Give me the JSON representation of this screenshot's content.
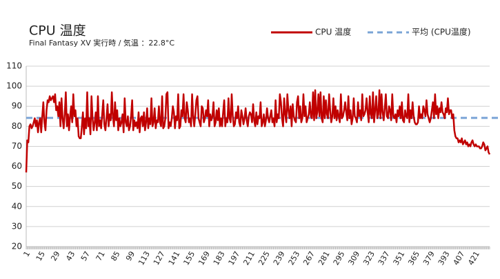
{
  "chart_data": {
    "type": "line",
    "title": "CPU 温度",
    "subtitle": "Final Fantasy XV 実行時 / 気温 ：22.8°C",
    "categories": [
      "1",
      null,
      null,
      null,
      null,
      null,
      null,
      null,
      null,
      null,
      null,
      null,
      null,
      null,
      "15",
      null,
      null,
      null,
      null,
      null,
      null,
      null,
      null,
      null,
      null,
      null,
      null,
      null,
      "29",
      null,
      null,
      null,
      null,
      null,
      null,
      null,
      null,
      null,
      null,
      null,
      null,
      null,
      "43",
      null,
      null,
      null,
      null,
      null,
      null,
      null,
      null,
      null,
      null,
      null,
      null,
      null,
      "57",
      null,
      null,
      null,
      null,
      null,
      null,
      null,
      null,
      null,
      null,
      null,
      null,
      null,
      "71",
      null,
      null,
      null,
      null,
      null,
      null,
      null,
      null,
      null,
      null,
      null,
      null,
      null,
      "85",
      null,
      null,
      null,
      null,
      null,
      null,
      null,
      null,
      null,
      null,
      null,
      null,
      null,
      "99",
      null,
      null,
      null,
      null,
      null,
      null,
      null,
      null,
      null,
      null,
      null,
      null,
      null,
      "113",
      null,
      null,
      null,
      null,
      null,
      null,
      null,
      null,
      null,
      null,
      null,
      null,
      null,
      "127",
      null,
      null,
      null,
      null,
      null,
      null,
      null,
      null,
      null,
      null,
      null,
      null,
      null,
      "141",
      null,
      null,
      null,
      null,
      null,
      null,
      null,
      null,
      null,
      null,
      null,
      null,
      null,
      "155",
      null,
      null,
      null,
      null,
      null,
      null,
      null,
      null,
      null,
      null,
      null,
      null,
      null,
      "169",
      null,
      null,
      null,
      null,
      null,
      null,
      null,
      null,
      null,
      null,
      null,
      null,
      null,
      "183",
      null,
      null,
      null,
      null,
      null,
      null,
      null,
      null,
      null,
      null,
      null,
      null,
      null,
      "197",
      null,
      null,
      null,
      null,
      null,
      null,
      null,
      null,
      null,
      null,
      null,
      null,
      null,
      "211",
      null,
      null,
      null,
      null,
      null,
      null,
      null,
      null,
      null,
      null,
      null,
      null,
      null,
      "225",
      null,
      null,
      null,
      null,
      null,
      null,
      null,
      null,
      null,
      null,
      null,
      null,
      null,
      "239",
      null,
      null,
      null,
      null,
      null,
      null,
      null,
      null,
      null,
      null,
      null,
      null,
      null,
      "253",
      null,
      null,
      null,
      null,
      null,
      null,
      null,
      null,
      null,
      null,
      null,
      null,
      null,
      "267",
      null,
      null,
      null,
      null,
      null,
      null,
      null,
      null,
      null,
      null,
      null,
      null,
      null,
      "281",
      null,
      null,
      null,
      null,
      null,
      null,
      null,
      null,
      null,
      null,
      null,
      null,
      null,
      "295",
      null,
      null,
      null,
      null,
      null,
      null,
      null,
      null,
      null,
      null,
      null,
      null,
      null,
      "309",
      null,
      null,
      null,
      null,
      null,
      null,
      null,
      null,
      null,
      null,
      null,
      null,
      null,
      "323",
      null,
      null,
      null,
      null,
      null,
      null,
      null,
      null,
      null,
      null,
      null,
      null,
      null,
      "337",
      null,
      null,
      null,
      null,
      null,
      null,
      null,
      null,
      null,
      null,
      null,
      null,
      null,
      "351",
      null,
      null,
      null,
      null,
      null,
      null,
      null,
      null,
      null,
      null,
      null,
      null,
      null,
      "365",
      null,
      null,
      null,
      null,
      null,
      null,
      null,
      null,
      null,
      null,
      null,
      null,
      null,
      "379",
      null,
      null,
      null,
      null,
      null,
      null,
      null,
      null,
      null,
      null,
      null,
      null,
      null,
      "393",
      null,
      null,
      null,
      null,
      null,
      null,
      null,
      null,
      null,
      null,
      null,
      null,
      null,
      "407",
      null,
      null,
      null,
      null,
      null,
      null,
      null,
      null,
      null,
      null,
      null,
      null,
      null,
      "421",
      null,
      null,
      null,
      null,
      null,
      null,
      null,
      null,
      null,
      null,
      null,
      null,
      null
    ],
    "series": [
      {
        "name": "CPU 温度",
        "color": "#c00000",
        "values": [
          57,
          73,
          72,
          80,
          81,
          79,
          80,
          82,
          84,
          80,
          83,
          77,
          82,
          84,
          77,
          85,
          92,
          82,
          78,
          88,
          93,
          92,
          95,
          93,
          94,
          95,
          92,
          96,
          88,
          90,
          85,
          92,
          80,
          94,
          84,
          79,
          86,
          97,
          80,
          86,
          78,
          85,
          90,
          82,
          96,
          85,
          88,
          80,
          84,
          75,
          74,
          74,
          80,
          87,
          76,
          84,
          79,
          97,
          80,
          84,
          76,
          95,
          84,
          78,
          82,
          87,
          78,
          95,
          80,
          83,
          79,
          86,
          93,
          81,
          78,
          84,
          91,
          80,
          86,
          83,
          97,
          85,
          80,
          92,
          83,
          88,
          78,
          84,
          80,
          82,
          86,
          77,
          94,
          82,
          80,
          85,
          78,
          80,
          85,
          93,
          78,
          83,
          80,
          82,
          79,
          87,
          77,
          84,
          85,
          80,
          87,
          78,
          82,
          89,
          79,
          84,
          81,
          94,
          80,
          82,
          89,
          79,
          83,
          82,
          90,
          82,
          80,
          95,
          79,
          80,
          84,
          96,
          97,
          79,
          82,
          80,
          84,
          90,
          87,
          79,
          85,
          83,
          96,
          79,
          80,
          88,
          85,
          96,
          84,
          82,
          92,
          88,
          82,
          84,
          80,
          96,
          85,
          80,
          86,
          93,
          95,
          84,
          82,
          80,
          90,
          89,
          82,
          84,
          88,
          85,
          93,
          80,
          86,
          83,
          85,
          92,
          80,
          82,
          88,
          83,
          89,
          80,
          84,
          80,
          87,
          93,
          80,
          84,
          82,
          94,
          84,
          82,
          96,
          85,
          80,
          81,
          87,
          84,
          90,
          82,
          80,
          88,
          85,
          81,
          84,
          89,
          83,
          80,
          85,
          87,
          86,
          82,
          91,
          83,
          80,
          87,
          81,
          85,
          84,
          92,
          80,
          82,
          86,
          80,
          83,
          89,
          84,
          82,
          85,
          88,
          82,
          84,
          80,
          93,
          82,
          86,
          84,
          96,
          92,
          84,
          80,
          94,
          86,
          82,
          96,
          88,
          84,
          90,
          80,
          91,
          85,
          83,
          82,
          92,
          95,
          84,
          90,
          82,
          84,
          96,
          85,
          90,
          82,
          84,
          86,
          92,
          85,
          84,
          97,
          83,
          98,
          84,
          87,
          96,
          85,
          97,
          84,
          82,
          95,
          84,
          93,
          86,
          84,
          96,
          88,
          82,
          85,
          94,
          84,
          90,
          83,
          88,
          85,
          82,
          96,
          84,
          85,
          88,
          92,
          87,
          83,
          95,
          84,
          88,
          81,
          84,
          94,
          85,
          84,
          82,
          92,
          85,
          88,
          83,
          96,
          85,
          86,
          88,
          94,
          87,
          82,
          95,
          86,
          84,
          97,
          82,
          88,
          95,
          84,
          86,
          98,
          84,
          96,
          87,
          83,
          89,
          96,
          85,
          84,
          90,
          88,
          83,
          96,
          85,
          84,
          86,
          82,
          88,
          85,
          90,
          84,
          92,
          83,
          82,
          88,
          85,
          84,
          96,
          82,
          88,
          84,
          92,
          85,
          82,
          81,
          81,
          82,
          90,
          84,
          86,
          84,
          90,
          88,
          85,
          93,
          86,
          84,
          82,
          84,
          88,
          92,
          84,
          96,
          86,
          90,
          84,
          89,
          87,
          92,
          87,
          86,
          84,
          89,
          87,
          94,
          86,
          88,
          88,
          84,
          86,
          78,
          75,
          74,
          74,
          72,
          73,
          72,
          74,
          71,
          72,
          73,
          71,
          72,
          70,
          71,
          70,
          72,
          73,
          71,
          70,
          71,
          70,
          70,
          70,
          69,
          69,
          70,
          72,
          71,
          68,
          69,
          70,
          67,
          66
        ]
      }
    ],
    "average": {
      "name": "平均 (CPU温度)",
      "color": "#7aa4d6",
      "value": 84.2
    },
    "ylim": [
      20,
      110
    ],
    "yticks": [
      20,
      30,
      40,
      50,
      60,
      70,
      80,
      90,
      100,
      110
    ],
    "grid": true,
    "legend": "top-right"
  }
}
